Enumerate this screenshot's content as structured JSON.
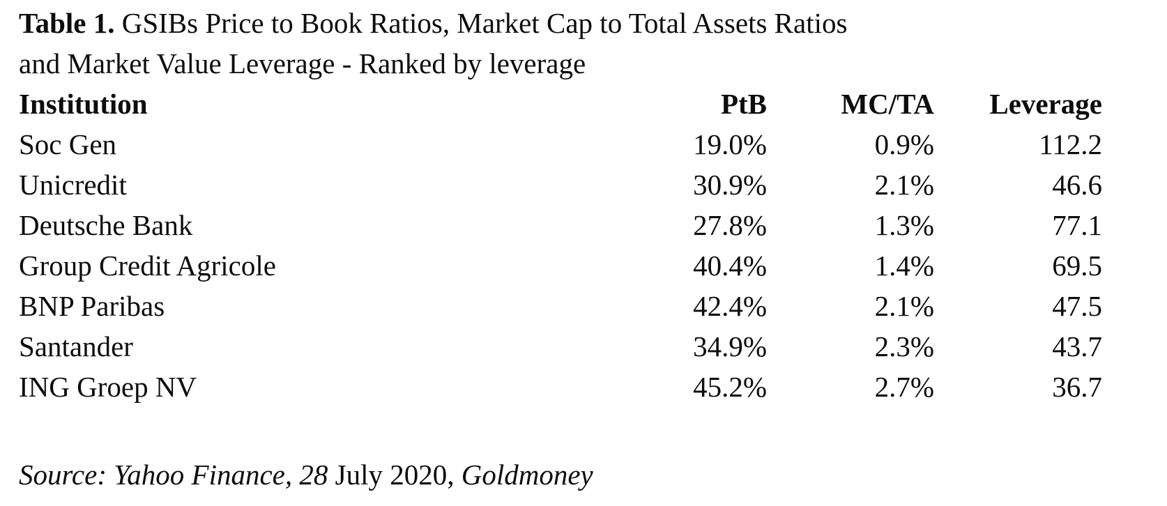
{
  "colors": {
    "background": "#ffffff",
    "text": "#0d0d0d"
  },
  "doc": {
    "title": {
      "label": "Table 1.",
      "line1_rest": " GSIBs Price to Book Ratios, Market Cap to Total Assets Ratios",
      "line2": "and Market Value Leverage - Ranked by leverage"
    },
    "table": {
      "headers": [
        "Institution",
        "PtB",
        "MC/TA",
        "Leverage"
      ],
      "rows": [
        [
          "Soc Gen",
          "19.0%",
          "0.9%",
          "112.2"
        ],
        [
          "Unicredit",
          "30.9%",
          "2.1%",
          "46.6"
        ],
        [
          "Deutsche Bank",
          "27.8%",
          "1.3%",
          "77.1"
        ],
        [
          "Group Credit Agricole",
          "40.4%",
          "1.4%",
          "69.5"
        ],
        [
          "BNP Paribas",
          "42.4%",
          "2.1%",
          "47.5"
        ],
        [
          "Santander",
          "34.9%",
          "2.3%",
          "43.7"
        ],
        [
          "ING Groep NV",
          "45.2%",
          "2.7%",
          "36.7"
        ]
      ]
    },
    "source_line": {
      "segments": [
        {
          "text": "Source: Yahoo Finance, 28",
          "italic": true
        },
        {
          "text": " July 2020, ",
          "italic": false
        },
        {
          "text": "Goldmoney",
          "italic": true
        }
      ]
    }
  }
}
